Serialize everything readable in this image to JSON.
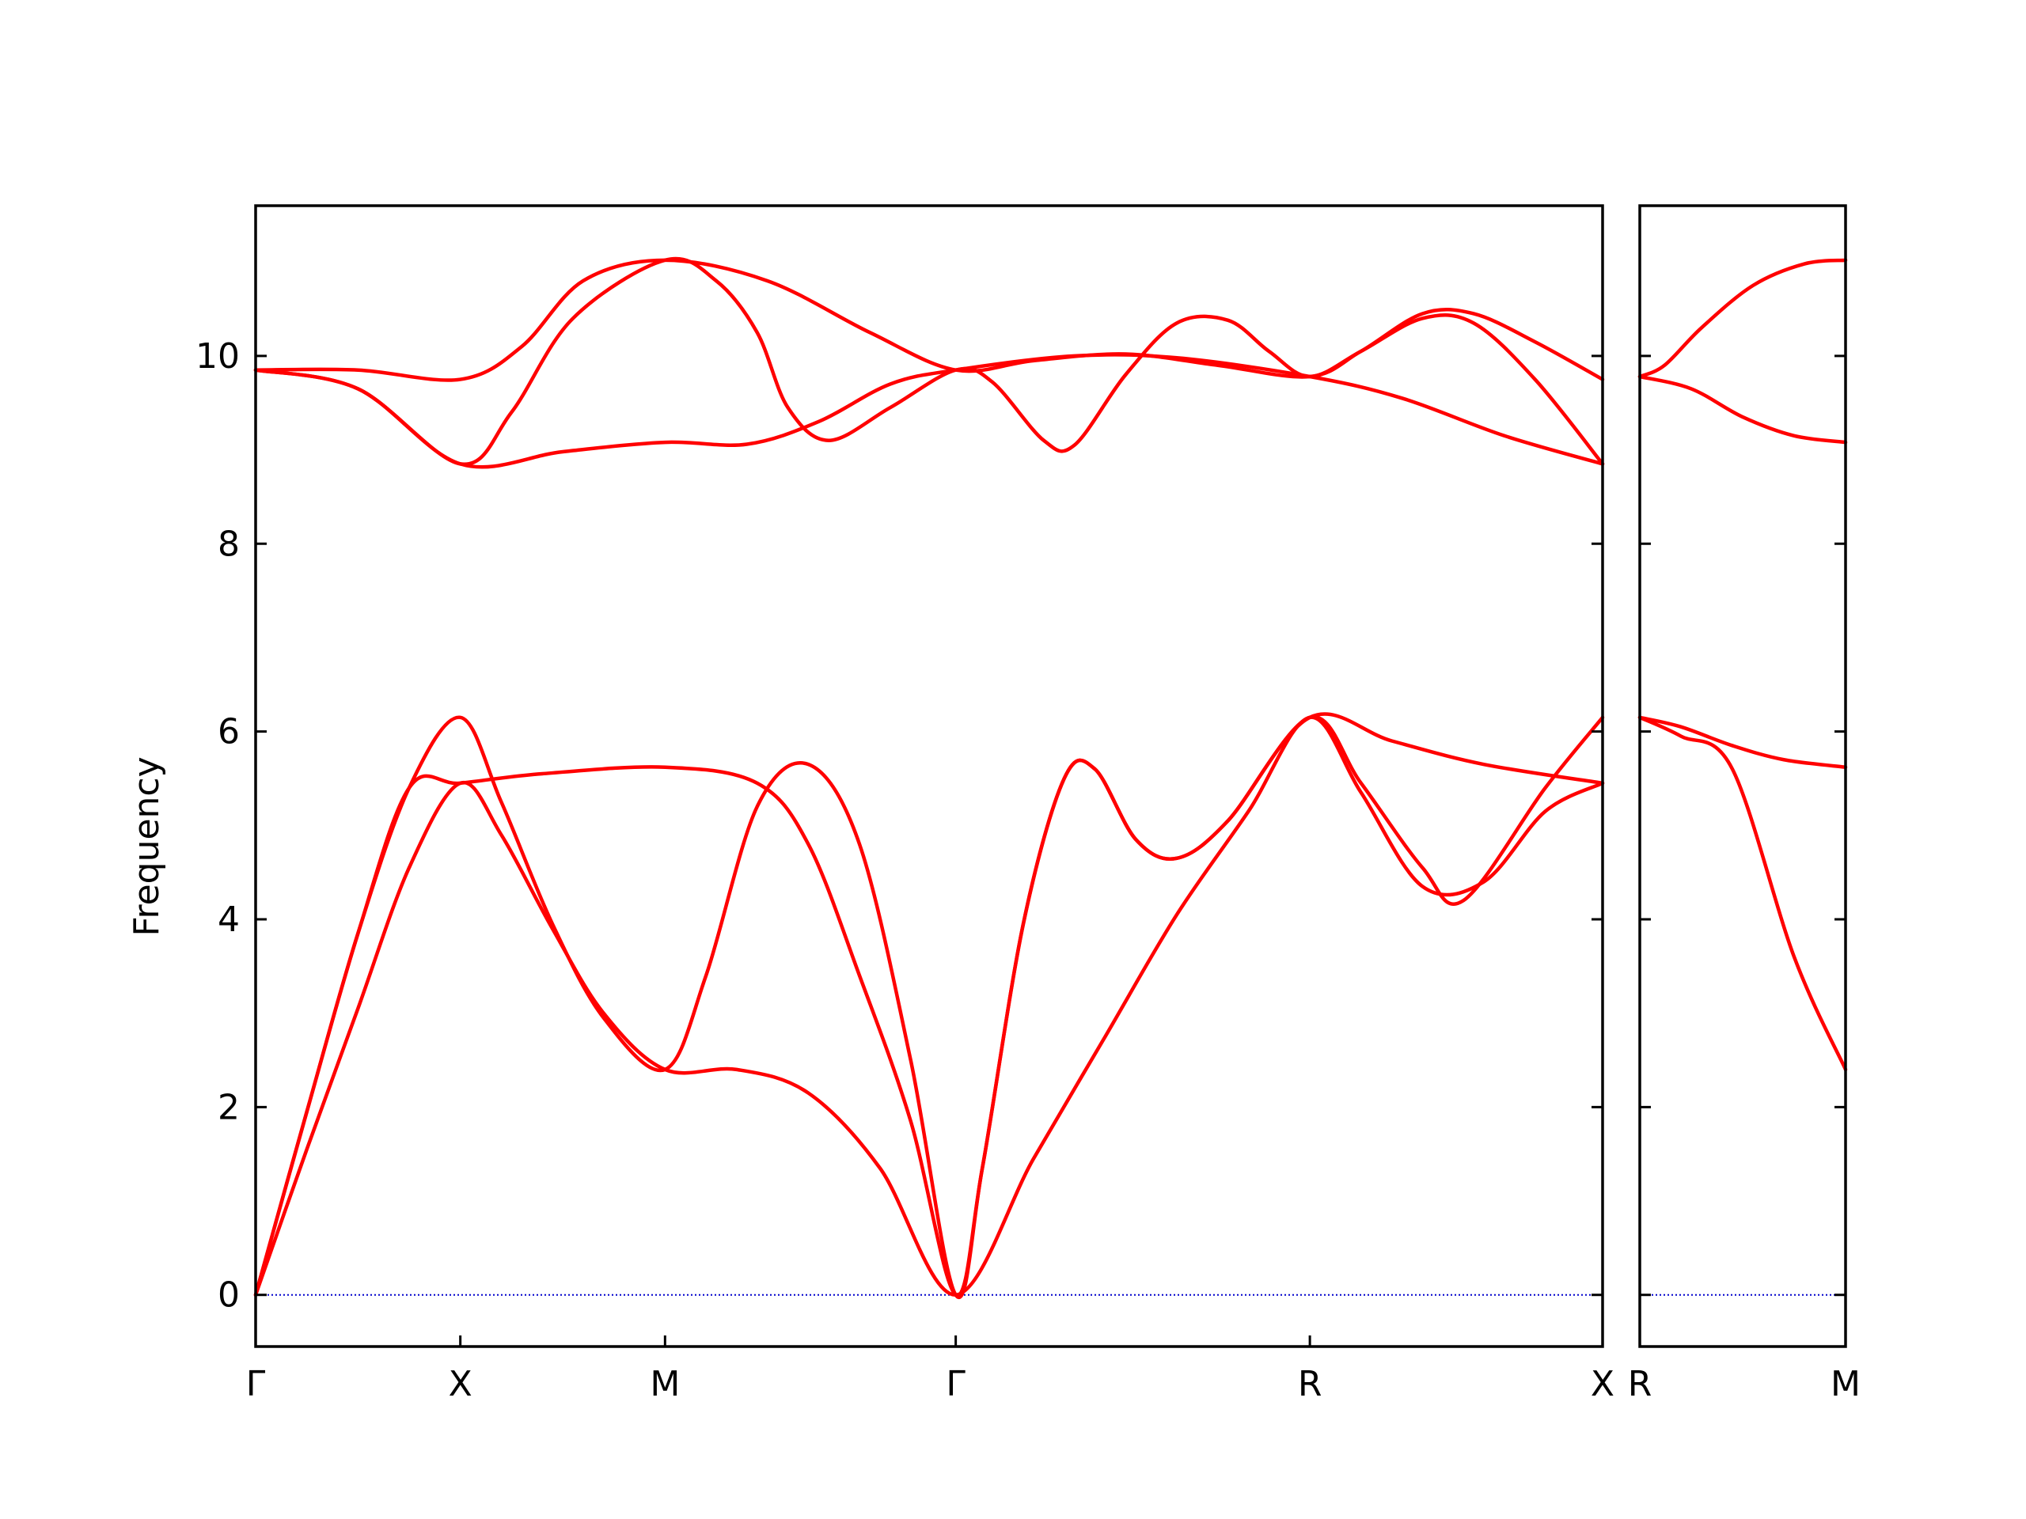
{
  "chart_data": {
    "type": "line",
    "ylabel": "Frequency",
    "ylim": [
      -0.55,
      11.6
    ],
    "yticks": [
      0,
      2,
      4,
      6,
      8,
      10
    ],
    "yticklabels": [
      "0",
      "2",
      "4",
      "6",
      "8",
      "10"
    ],
    "line_color": "#ff0000",
    "zero_line_color": "#0000cc",
    "panels": [
      {
        "name": "left",
        "xlim": [
          0,
          6.58
        ],
        "ticks": [
          {
            "x": 0,
            "label": "Γ"
          },
          {
            "x": 1,
            "label": "X"
          },
          {
            "x": 2,
            "label": "M"
          },
          {
            "x": 3.42,
            "label": "Γ"
          },
          {
            "x": 5.15,
            "label": "R"
          },
          {
            "x": 6.58,
            "label": "X"
          }
        ],
        "series": [
          {
            "points": [
              [
                0,
                0
              ],
              [
                0.25,
                1.55
              ],
              [
                0.5,
                3.05
              ],
              [
                0.75,
                4.55
              ],
              [
                1,
                5.45
              ],
              [
                1.2,
                4.9
              ],
              [
                1.45,
                3.9
              ],
              [
                1.7,
                3
              ],
              [
                2,
                2.4
              ],
              [
                2.35,
                2.4
              ],
              [
                2.7,
                2.15
              ],
              [
                3.05,
                1.35
              ],
              [
                3.42,
                0
              ],
              [
                3.8,
                1.45
              ],
              [
                4.15,
                2.75
              ],
              [
                4.5,
                4.05
              ],
              [
                4.85,
                5.15
              ],
              [
                5.15,
                6.15
              ],
              [
                5.4,
                5.35
              ],
              [
                5.7,
                4.35
              ],
              [
                6,
                4.4
              ],
              [
                6.3,
                5.15
              ],
              [
                6.58,
                5.45
              ]
            ]
          },
          {
            "points": [
              [
                0,
                0
              ],
              [
                0.25,
                1.95
              ],
              [
                0.5,
                3.85
              ],
              [
                0.75,
                5.4
              ],
              [
                1,
                6.15
              ],
              [
                1.2,
                5.25
              ],
              [
                1.45,
                3.95
              ],
              [
                1.7,
                2.95
              ],
              [
                2,
                2.4
              ],
              [
                2.2,
                3.4
              ],
              [
                2.45,
                5.2
              ],
              [
                2.7,
                5.65
              ],
              [
                2.95,
                4.8
              ],
              [
                3.2,
                2.5
              ],
              [
                3.42,
                0
              ],
              [
                3.55,
                1.35
              ],
              [
                3.75,
                3.95
              ],
              [
                3.95,
                5.5
              ],
              [
                4.1,
                5.6
              ],
              [
                4.3,
                4.85
              ],
              [
                4.5,
                4.65
              ],
              [
                4.75,
                5.05
              ],
              [
                5.15,
                6.15
              ],
              [
                5.4,
                5.45
              ],
              [
                5.7,
                4.55
              ],
              [
                5.9,
                4.2
              ],
              [
                6.3,
                5.4
              ],
              [
                6.58,
                6.15
              ]
            ]
          },
          {
            "points": [
              [
                0,
                0
              ],
              [
                0.25,
                1.95
              ],
              [
                0.5,
                3.85
              ],
              [
                0.75,
                5.4
              ],
              [
                1,
                5.45
              ],
              [
                1.4,
                5.55
              ],
              [
                2,
                5.62
              ],
              [
                2.45,
                5.45
              ],
              [
                2.7,
                4.8
              ],
              [
                2.95,
                3.4
              ],
              [
                3.2,
                1.85
              ],
              [
                3.42,
                0
              ],
              [
                3.55,
                1.35
              ],
              [
                3.75,
                3.95
              ],
              [
                3.95,
                5.5
              ],
              [
                4.1,
                5.6
              ],
              [
                4.3,
                4.85
              ],
              [
                4.5,
                4.65
              ],
              [
                4.75,
                5.05
              ],
              [
                5.15,
                6.15
              ],
              [
                5.55,
                5.9
              ],
              [
                6,
                5.65
              ],
              [
                6.58,
                5.45
              ]
            ]
          },
          {
            "points": [
              [
                0,
                9.85
              ],
              [
                0.5,
                9.65
              ],
              [
                1,
                8.85
              ],
              [
                1.5,
                8.98
              ],
              [
                2,
                9.08
              ],
              [
                2.4,
                9.06
              ],
              [
                2.75,
                9.3
              ],
              [
                3.1,
                9.7
              ],
              [
                3.42,
                9.85
              ],
              [
                4,
                10
              ],
              [
                4.5,
                9.98
              ],
              [
                5.15,
                9.78
              ],
              [
                5.6,
                9.55
              ],
              [
                6.1,
                9.15
              ],
              [
                6.58,
                8.85
              ]
            ]
          },
          {
            "points": [
              [
                0,
                9.85
              ],
              [
                0.5,
                9.65
              ],
              [
                1,
                8.85
              ],
              [
                1.25,
                9.4
              ],
              [
                1.55,
                10.4
              ],
              [
                2,
                11.02
              ],
              [
                2.25,
                10.8
              ],
              [
                2.45,
                10.25
              ],
              [
                2.6,
                9.45
              ],
              [
                2.8,
                9.1
              ],
              [
                3.1,
                9.45
              ],
              [
                3.42,
                9.85
              ],
              [
                3.6,
                9.72
              ],
              [
                3.85,
                9.1
              ],
              [
                4,
                9.05
              ],
              [
                4.25,
                9.8
              ],
              [
                4.5,
                10.35
              ],
              [
                4.75,
                10.38
              ],
              [
                4.95,
                10.05
              ],
              [
                5.15,
                9.78
              ],
              [
                5.4,
                10.05
              ],
              [
                5.7,
                10.4
              ],
              [
                5.95,
                10.35
              ],
              [
                6.25,
                9.75
              ],
              [
                6.58,
                8.85
              ]
            ]
          },
          {
            "points": [
              [
                0,
                9.85
              ],
              [
                0.5,
                9.85
              ],
              [
                1,
                9.75
              ],
              [
                1.3,
                10.1
              ],
              [
                1.6,
                10.8
              ],
              [
                2,
                11.02
              ],
              [
                2.5,
                10.8
              ],
              [
                3,
                10.25
              ],
              [
                3.42,
                9.85
              ],
              [
                3.8,
                9.95
              ],
              [
                4.25,
                10.02
              ],
              [
                4.7,
                9.9
              ],
              [
                5.15,
                9.78
              ],
              [
                5.4,
                10.05
              ],
              [
                5.7,
                10.45
              ],
              [
                5.95,
                10.45
              ],
              [
                6.25,
                10.15
              ],
              [
                6.58,
                9.75
              ]
            ]
          }
        ]
      },
      {
        "name": "right",
        "xlim": [
          0,
          1
        ],
        "ticks": [
          {
            "x": 0,
            "label": "R"
          },
          {
            "x": 1,
            "label": "M"
          }
        ],
        "series": [
          {
            "points": [
              [
                0,
                6.15
              ],
              [
                0.2,
                5.95
              ],
              [
                0.45,
                5.6
              ],
              [
                0.75,
                3.6
              ],
              [
                1,
                2.4
              ]
            ]
          },
          {
            "points": [
              [
                0,
                6.15
              ],
              [
                0.2,
                6.05
              ],
              [
                0.45,
                5.85
              ],
              [
                0.7,
                5.7
              ],
              [
                1,
                5.62
              ]
            ]
          },
          {
            "points": [
              [
                0,
                9.78
              ],
              [
                0.25,
                9.65
              ],
              [
                0.5,
                9.35
              ],
              [
                0.75,
                9.15
              ],
              [
                1,
                9.08
              ]
            ]
          },
          {
            "points": [
              [
                0,
                9.78
              ],
              [
                0.12,
                9.9
              ],
              [
                0.3,
                10.3
              ],
              [
                0.55,
                10.75
              ],
              [
                0.8,
                10.98
              ],
              [
                1,
                11.02
              ]
            ]
          }
        ]
      }
    ]
  }
}
